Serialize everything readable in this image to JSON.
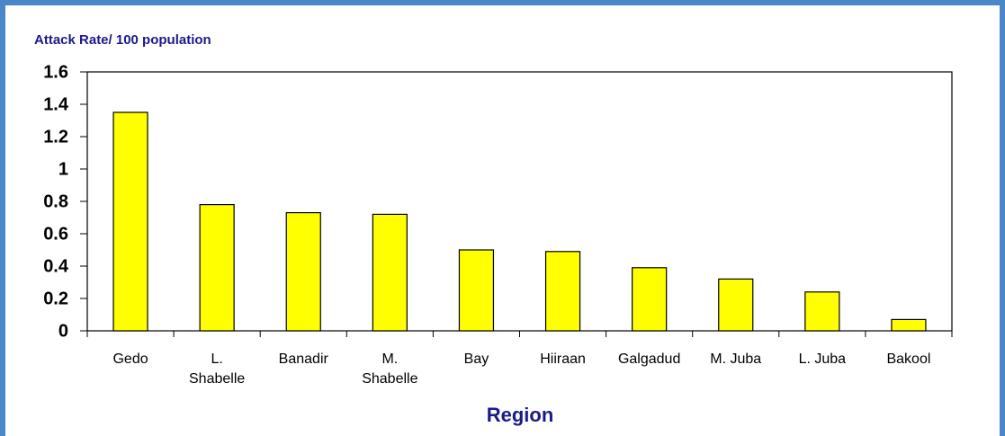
{
  "chart_data": {
    "type": "bar",
    "y_axis_label": "Attack Rate/ 100 population",
    "x_axis_label": "Region",
    "categories": [
      "Gedo",
      "L. Shabelle",
      "Banadir",
      "M. Shabelle",
      "Bay",
      "Hiiraan",
      "Galgadud",
      "M. Juba",
      "L. Juba",
      "Bakool"
    ],
    "values": [
      1.35,
      0.78,
      0.73,
      0.72,
      0.5,
      0.49,
      0.39,
      0.32,
      0.24,
      0.07
    ],
    "color": "#ffff00",
    "ylim": [
      0,
      1.6
    ],
    "yticks": [
      0,
      0.2,
      0.4,
      0.6,
      0.8,
      1,
      1.2,
      1.4,
      1.6
    ],
    "grid": false
  }
}
